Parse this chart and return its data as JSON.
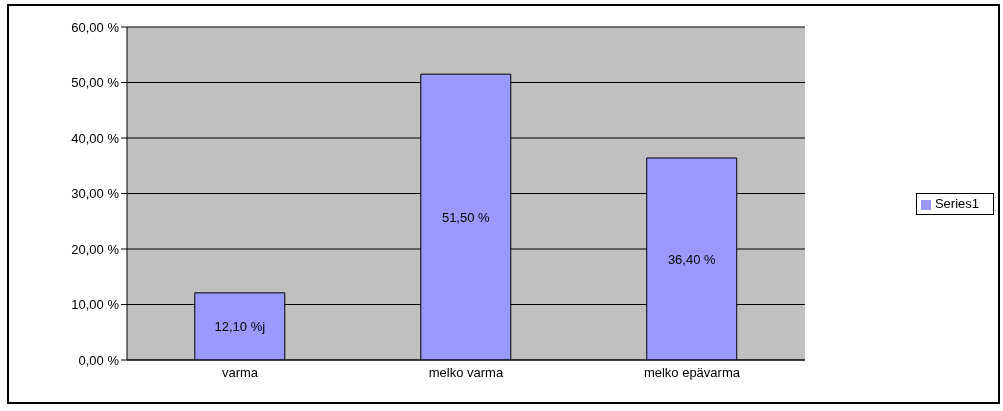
{
  "chart_data": {
    "type": "bar",
    "categories": [
      "varma",
      "melko varma",
      "melko epävarma"
    ],
    "series": [
      {
        "name": "Series1",
        "color": "#9999ff",
        "values": [
          12.1,
          51.5,
          36.4
        ],
        "value_labels": [
          "12,10 %j",
          "51,50 %",
          "36,40 %"
        ]
      }
    ],
    "ylim": [
      0,
      60
    ],
    "yticks": [
      {
        "value": 0,
        "label": "0,00 %"
      },
      {
        "value": 10,
        "label": "10,00 %"
      },
      {
        "value": 20,
        "label": "20,00 %"
      },
      {
        "value": 30,
        "label": "30,00 %"
      },
      {
        "value": 40,
        "label": "40,00 %"
      },
      {
        "value": 50,
        "label": "50,00 %"
      },
      {
        "value": 60,
        "label": "60,00 %"
      }
    ],
    "grid": "y",
    "legend": "right"
  }
}
